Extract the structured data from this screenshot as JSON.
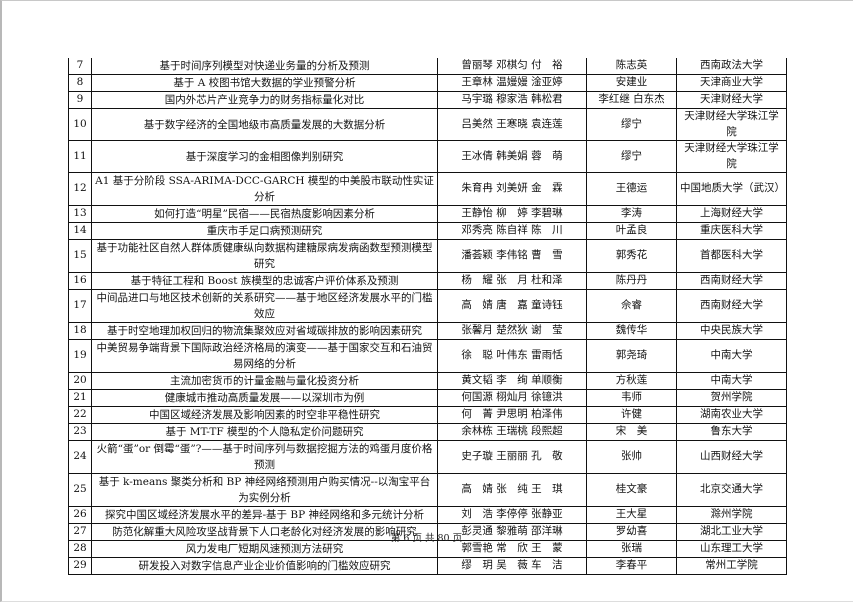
{
  "rows": [
    {
      "no": "7",
      "title": "基于时间序列模型对快递业务量的分析及预测",
      "members": "曾丽琴 邓棋匀 付　裕",
      "advisor": "陈志英",
      "school": "西南政法大学"
    },
    {
      "no": "8",
      "title": "基于 A 校图书馆大数据的学业预警分析",
      "members": "王章林 温嫚嫚 淦亚婷",
      "advisor": "安建业",
      "school": "天津商业大学"
    },
    {
      "no": "9",
      "title": "国内外芯片产业竞争力的财务指标量化对比",
      "members": "马宇璐 穆家浩 韩松君",
      "advisor": "李红继 白东杰",
      "school": "天津财经大学"
    },
    {
      "no": "10",
      "title": "基于数字经济的全国地级市高质量发展的大数据分析",
      "members": "吕美然 王寒晓 袁连莲",
      "advisor": "缪宁",
      "school": "天津财经大学珠江学院"
    },
    {
      "no": "11",
      "title": "基于深度学习的金相图像判别研究",
      "members": "王冰倩 韩美娟 蓉　萌",
      "advisor": "缪宁",
      "school": "天津财经大学珠江学院"
    },
    {
      "no": "12",
      "title": "A1 基于分阶段 SSA-ARIMA-DCC-GARCH 模型的中美股市联动性实证分析",
      "members": "朱育冉 刘美妍 金　霖",
      "advisor": "王德运",
      "school": "中国地质大学（武汉）"
    },
    {
      "no": "13",
      "title": "如何打造“明星”民宿——民宿热度影响因素分析",
      "members": "王静怡 柳　婷 李碧琳",
      "advisor": "李涛",
      "school": "上海财经大学"
    },
    {
      "no": "14",
      "title": "重庆市手足口病预测研究",
      "members": "邓秀亮 陈自祥 陈　川",
      "advisor": "叶孟良",
      "school": "重庆医科大学"
    },
    {
      "no": "15",
      "title": "基于功能社区自然人群体质健康纵向数据构建糖尿病发病函数型预测模型研究",
      "members": "潘荟颖 李伟铭 曹　雪",
      "advisor": "郭秀花",
      "school": "首都医科大学"
    },
    {
      "no": "16",
      "title": "基于特征工程和 Boost 族模型的忠诚客户评价体系及预测",
      "members": "杨　耀 张　月 杜和泽",
      "advisor": "陈丹丹",
      "school": "西南财经大学"
    },
    {
      "no": "17",
      "title": "中间品进口与地区技术创新的关系研究——基于地区经济发展水平的门槛效应",
      "members": "高　婧 唐　嘉 童诗钰",
      "advisor": "佘睿",
      "school": "西南财经大学"
    },
    {
      "no": "18",
      "title": "基于时空地理加权回归的物流集聚效应对省域碳排放的影响因素研究",
      "members": "张馨月 楚然狄 谢　莹",
      "advisor": "魏传华",
      "school": "中央民族大学"
    },
    {
      "no": "19",
      "title": "中美贸易争端背景下国际政治经济格局的演变——基于国家交互和石油贸易网络的分析",
      "members": "徐　聪 叶伟东 雷雨恬",
      "advisor": "郭尧琦",
      "school": "中南大学"
    },
    {
      "no": "20",
      "title": "主流加密货币的计量金融与量化投资分析",
      "members": "黄文韬 李　绚 单顺衡",
      "advisor": "方秋莲",
      "school": "中南大学"
    },
    {
      "no": "21",
      "title": "健康城市推动高质量发展——以深圳市为例",
      "members": "何国源 栩灿月 徐镱洪",
      "advisor": "韦师",
      "school": "贺州学院"
    },
    {
      "no": "22",
      "title": "中国区域经济发展及影响因素的时空非平稳性研究",
      "members": "何　菁 尹思明 柏泽伟",
      "advisor": "许健",
      "school": "湖南农业大学"
    },
    {
      "no": "23",
      "title": "基于 MT-TF 模型的个人隐私定价问题研究",
      "members": "余林栋 王瑞桃 段熙超",
      "advisor": "宋　美",
      "school": "鲁东大学"
    },
    {
      "no": "24",
      "title": "火箭“蛋”or 倒霉“蛋”?——基于时间序列与数据挖掘方法的鸡蛋月度价格预测",
      "members": "史子璇 王丽丽 孔　敬",
      "advisor": "张帅",
      "school": "山西财经大学"
    },
    {
      "no": "25",
      "title": "基于 k-means 聚类分析和 BP 神经网络预测用户购买情况--以淘宝平台为实例分析",
      "members": "高　婧 张　纯 王　琪",
      "advisor": "桂文豪",
      "school": "北京交通大学"
    },
    {
      "no": "26",
      "title": "探究中国区域经济发展水平的差异-基于 BP 神经网络和多元统计分析",
      "members": "刘　浩 李停停 张静亚",
      "advisor": "王大星",
      "school": "滁州学院"
    },
    {
      "no": "27",
      "title": "防范化解重大风险攻坚战背景下人口老龄化对经济发展的影响研究",
      "members": "彭灵通 黎雅萌 邵洋琳",
      "advisor": "罗幼喜",
      "school": "湖北工业大学"
    },
    {
      "no": "28",
      "title": "风力发电厂短期风速预测方法研究",
      "members": "郭雪艳 常　欣 王　蒙",
      "advisor": "张瑞",
      "school": "山东理工大学"
    },
    {
      "no": "29",
      "title": "研发投入对数字信息产业企业价值影响的门槛效应研究",
      "members": "缪　玥 吴　薇 车　洁",
      "advisor": "李春平",
      "school": "常州工学院"
    }
  ],
  "footer": "第 6 页 共 80 页"
}
